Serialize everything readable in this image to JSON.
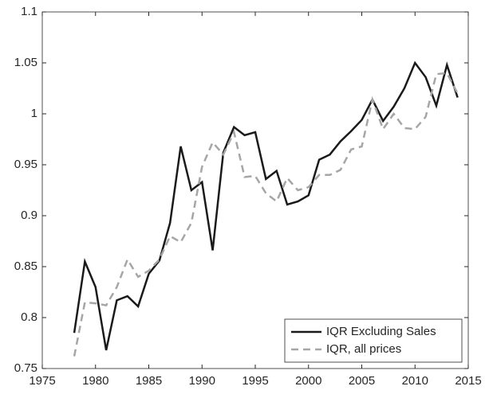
{
  "chart_data": {
    "type": "line",
    "x": [
      1978,
      1979,
      1980,
      1981,
      1982,
      1983,
      1984,
      1985,
      1986,
      1987,
      1988,
      1989,
      1990,
      1991,
      1992,
      1993,
      1994,
      1995,
      1996,
      1997,
      1998,
      1999,
      2000,
      2001,
      2002,
      2003,
      2004,
      2005,
      2006,
      2007,
      2008,
      2009,
      2010,
      2011,
      2012,
      2013,
      2014
    ],
    "series": [
      {
        "name": "IQR Excluding Sales",
        "color": "#1a1a1a",
        "dash": false,
        "values": [
          0.785,
          0.855,
          0.83,
          0.768,
          0.817,
          0.821,
          0.811,
          0.843,
          0.856,
          0.893,
          0.968,
          0.925,
          0.933,
          0.866,
          0.962,
          0.987,
          0.979,
          0.982,
          0.936,
          0.944,
          0.911,
          0.914,
          0.92,
          0.955,
          0.96,
          0.973,
          0.983,
          0.994,
          1.014,
          0.993,
          1.007,
          1.025,
          1.05,
          1.036,
          1.008,
          1.048,
          1.016
        ]
      },
      {
        "name": "IQR, all prices",
        "color": "#a6a6a6",
        "dash": true,
        "values": [
          0.762,
          0.815,
          0.814,
          0.812,
          0.83,
          0.857,
          0.84,
          0.846,
          0.857,
          0.88,
          0.874,
          0.893,
          0.948,
          0.972,
          0.96,
          0.982,
          0.938,
          0.939,
          0.922,
          0.914,
          0.937,
          0.925,
          0.928,
          0.94,
          0.94,
          0.945,
          0.965,
          0.968,
          1.014,
          0.985,
          1.0,
          0.986,
          0.985,
          0.997,
          1.039,
          1.04,
          1.02
        ]
      }
    ],
    "xlim": [
      1975,
      2015
    ],
    "xticks": [
      1975,
      1980,
      1985,
      1990,
      1995,
      2000,
      2005,
      2010,
      2015
    ],
    "ylim": [
      0.75,
      1.1
    ],
    "yticks": [
      0.75,
      0.8,
      0.85,
      0.9,
      0.95,
      1,
      1.05,
      1.1
    ],
    "grid": false,
    "legend": "lower right"
  }
}
